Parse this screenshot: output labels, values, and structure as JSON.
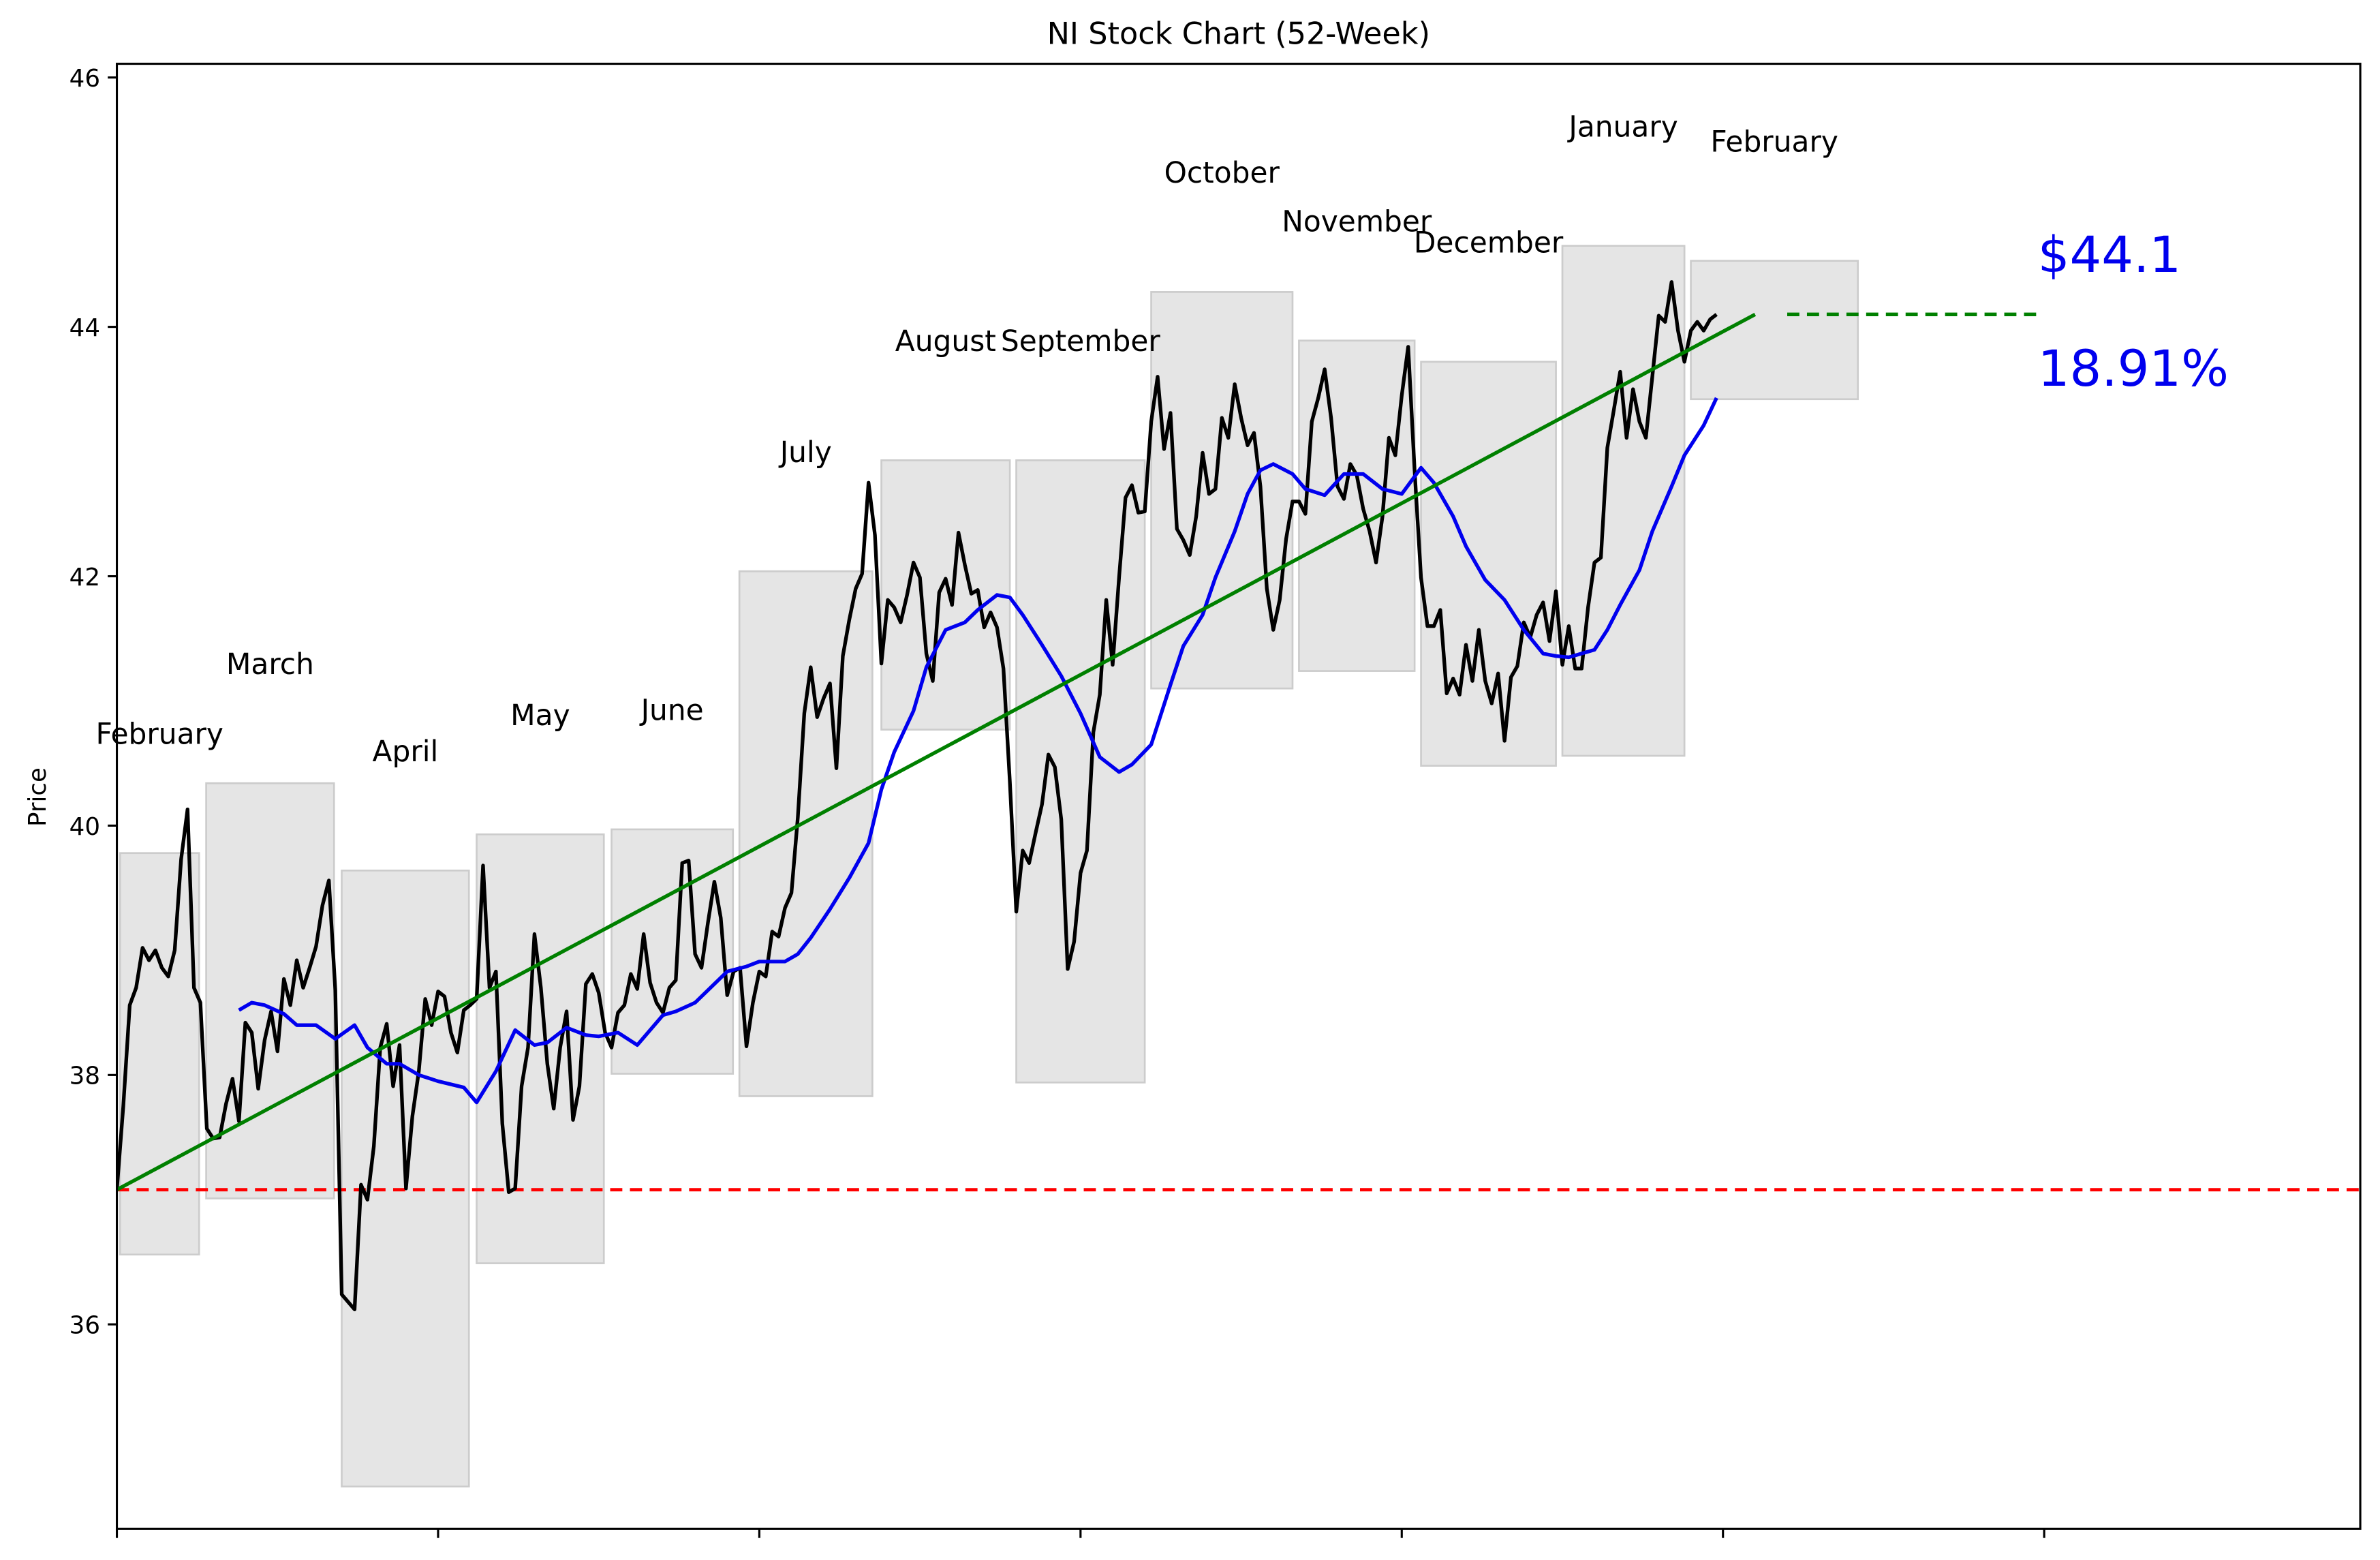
{
  "chart_data": {
    "type": "line",
    "title": "NI Stock Chart (52-Week)",
    "ylabel": "Price",
    "xlim": [
      0,
      349.2
    ],
    "xticks": [
      0,
      50,
      100,
      150,
      200,
      250,
      300
    ],
    "ylim": [
      34.36,
      46.11
    ],
    "yticks": [
      36,
      38,
      40,
      42,
      44,
      46
    ],
    "series": [
      {
        "color": "#000000",
        "values": [
          37.08,
          37.75,
          38.56,
          38.7,
          39.02,
          38.92,
          39.0,
          38.86,
          38.79,
          39.0,
          39.73,
          40.13,
          38.7,
          38.58,
          37.57,
          37.49,
          37.5,
          37.77,
          37.97,
          37.63,
          38.42,
          38.34,
          37.89,
          38.28,
          38.51,
          38.19,
          38.77,
          38.56,
          38.92,
          38.7,
          38.86,
          39.03,
          39.36,
          39.56,
          38.68,
          36.24,
          36.18,
          36.12,
          37.12,
          37.0,
          37.43,
          38.22,
          38.41,
          37.91,
          38.24,
          37.09,
          37.67,
          38.03,
          38.61,
          38.4,
          38.67,
          38.63,
          38.34,
          38.18,
          38.52,
          38.56,
          38.61,
          39.68,
          38.7,
          38.83,
          37.61,
          37.06,
          37.09,
          37.91,
          38.22,
          39.13,
          38.7,
          38.09,
          37.73,
          38.22,
          38.51,
          37.64,
          37.91,
          38.73,
          38.81,
          38.66,
          38.34,
          38.22,
          38.5,
          38.56,
          38.81,
          38.69,
          39.13,
          38.74,
          38.58,
          38.5,
          38.7,
          38.76,
          39.7,
          39.72,
          38.97,
          38.86,
          39.22,
          39.55,
          39.26,
          38.64,
          38.83,
          38.86,
          38.23,
          38.58,
          38.83,
          38.79,
          39.15,
          39.11,
          39.34,
          39.46,
          40.07,
          40.9,
          41.27,
          40.87,
          41.02,
          41.14,
          40.46,
          41.36,
          41.65,
          41.9,
          42.02,
          42.75,
          42.33,
          41.3,
          41.81,
          41.75,
          41.63,
          41.85,
          42.11,
          41.99,
          41.38,
          41.16,
          41.87,
          41.98,
          41.77,
          42.35,
          42.09,
          41.86,
          41.89,
          41.59,
          41.71,
          41.59,
          41.26,
          40.35,
          39.31,
          39.8,
          39.7,
          39.94,
          40.17,
          40.57,
          40.47,
          40.05,
          38.85,
          39.07,
          39.62,
          39.8,
          40.75,
          41.05,
          41.81,
          41.29,
          41.99,
          42.63,
          42.73,
          42.51,
          42.52,
          43.24,
          43.6,
          43.02,
          43.31,
          42.38,
          42.29,
          42.17,
          42.48,
          42.99,
          42.66,
          42.7,
          43.27,
          43.11,
          43.54,
          43.27,
          43.05,
          43.15,
          42.72,
          41.9,
          41.57,
          41.81,
          42.3,
          42.6,
          42.6,
          42.5,
          43.24,
          43.43,
          43.66,
          43.27,
          42.72,
          42.62,
          42.9,
          42.81,
          42.54,
          42.36,
          42.11,
          42.48,
          43.11,
          42.97,
          43.45,
          43.84,
          42.85,
          41.99,
          41.6,
          41.6,
          41.73,
          41.06,
          41.18,
          41.05,
          41.45,
          41.16,
          41.57,
          41.16,
          40.98,
          41.22,
          40.68,
          41.19,
          41.28,
          41.63,
          41.51,
          41.69,
          41.79,
          41.48,
          41.88,
          41.29,
          41.6,
          41.26,
          41.26,
          41.75,
          42.11,
          42.15,
          43.03,
          43.33,
          43.64,
          43.11,
          43.5,
          43.24,
          43.11,
          43.6,
          44.09,
          44.04,
          44.36,
          43.97,
          43.72,
          43.97,
          44.04,
          43.97,
          44.06,
          44.1
        ]
      },
      {
        "color": "#0000ee",
        "x": [
          19,
          21,
          23,
          26,
          28,
          31,
          34,
          37,
          39,
          42,
          44,
          47,
          50,
          54,
          56,
          59,
          62,
          65,
          67,
          70,
          73,
          75,
          78,
          81,
          85,
          87,
          90,
          93,
          95,
          98,
          100,
          104,
          106,
          108,
          111,
          114,
          117,
          119,
          121,
          124,
          126,
          129,
          132,
          134,
          137,
          139,
          141,
          144,
          147,
          150,
          153,
          156,
          158,
          161,
          164,
          166,
          169,
          171,
          174,
          176,
          178,
          180,
          183,
          185,
          188,
          191,
          194,
          197,
          200,
          203,
          205,
          208,
          210,
          213,
          216,
          219,
          222,
          224,
          226,
          230,
          232,
          234,
          237,
          239,
          242,
          244,
          247,
          249
        ],
        "values": [
          38.52,
          38.58,
          38.56,
          38.49,
          38.4,
          38.4,
          38.29,
          38.4,
          38.22,
          38.09,
          38.09,
          38.0,
          37.95,
          37.9,
          37.78,
          38.03,
          38.36,
          38.24,
          38.26,
          38.38,
          38.32,
          38.31,
          38.34,
          38.24,
          38.48,
          38.51,
          38.58,
          38.73,
          38.83,
          38.87,
          38.91,
          38.91,
          38.97,
          39.1,
          39.33,
          39.58,
          39.86,
          40.29,
          40.59,
          40.92,
          41.27,
          41.57,
          41.63,
          41.73,
          41.85,
          41.83,
          41.69,
          41.45,
          41.2,
          40.9,
          40.55,
          40.43,
          40.49,
          40.65,
          41.13,
          41.44,
          41.69,
          41.99,
          42.36,
          42.66,
          42.85,
          42.9,
          42.82,
          42.7,
          42.65,
          42.82,
          42.82,
          42.7,
          42.66,
          42.87,
          42.75,
          42.48,
          42.24,
          41.97,
          41.81,
          41.57,
          41.38,
          41.36,
          41.35,
          41.41,
          41.57,
          41.77,
          42.05,
          42.36,
          42.72,
          42.97,
          43.21,
          43.43
        ]
      }
    ],
    "trend": {
      "color": "#008000",
      "x": [
        0,
        255
      ],
      "values": [
        37.08,
        44.1
      ]
    },
    "projection": {
      "color": "#008000",
      "x": [
        260,
        299
      ],
      "value": 44.1
    },
    "baseline": {
      "color": "#ff0000",
      "value": 37.08
    },
    "annotations": [
      {
        "text": "$44.1",
        "color": "#0000ee"
      },
      {
        "text": "18.91%",
        "color": "#0000ee"
      }
    ],
    "months": [
      {
        "name": "February",
        "start": 0.5,
        "end": 12.8,
        "high": 39.78,
        "low": 36.56
      },
      {
        "name": "March",
        "start": 13.9,
        "end": 33.8,
        "high": 40.34,
        "low": 37.01
      },
      {
        "name": "April",
        "start": 35,
        "end": 54.8,
        "high": 39.64,
        "low": 34.7
      },
      {
        "name": "May",
        "start": 56,
        "end": 75.8,
        "high": 39.93,
        "low": 36.49
      },
      {
        "name": "June",
        "start": 77,
        "end": 95.9,
        "high": 39.97,
        "low": 38.01
      },
      {
        "name": "July",
        "start": 96.9,
        "end": 117.6,
        "high": 42.04,
        "low": 37.83
      },
      {
        "name": "August",
        "start": 119,
        "end": 139,
        "high": 42.93,
        "low": 40.77
      },
      {
        "name": "September",
        "start": 140,
        "end": 160,
        "high": 42.93,
        "low": 37.94
      },
      {
        "name": "October",
        "start": 161,
        "end": 183,
        "high": 44.28,
        "low": 41.1
      },
      {
        "name": "November",
        "start": 184,
        "end": 202,
        "high": 43.89,
        "low": 41.24
      },
      {
        "name": "December",
        "start": 203,
        "end": 224,
        "high": 43.72,
        "low": 40.48
      },
      {
        "name": "January",
        "start": 225,
        "end": 244,
        "high": 44.65,
        "low": 40.56
      },
      {
        "name": "February",
        "start": 245,
        "end": 271,
        "high": 44.53,
        "low": 43.42
      }
    ]
  }
}
